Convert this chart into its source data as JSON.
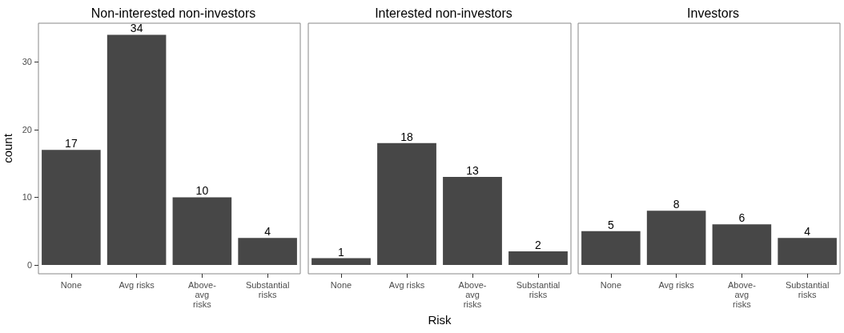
{
  "chart_data": [
    {
      "type": "bar",
      "title": "Non-interested non-investors",
      "ylabel": "count",
      "categories": [
        "None",
        "Avg risks",
        "Above-\navg\nrisks",
        "Substantial\nrisks"
      ],
      "values": [
        17,
        34,
        10,
        4
      ],
      "color": "#474747",
      "ylim": [
        -1.3,
        35.7
      ],
      "yticks": [
        0,
        10,
        20,
        30
      ],
      "data_labels": true,
      "grid": false
    },
    {
      "type": "bar",
      "title": "Interested non-investors",
      "xlabel": "Risk",
      "categories": [
        "None",
        "Avg risks",
        "Above-\navg\nrisks",
        "Substantial\nrisks"
      ],
      "values": [
        1,
        18,
        13,
        2
      ],
      "color": "#474747",
      "ylim": [
        -1.3,
        35.7
      ],
      "yticks": [
        0,
        10,
        20,
        30
      ],
      "data_labels": true,
      "grid": false,
      "tick_labels": "x"
    },
    {
      "type": "bar",
      "title": "Investors",
      "categories": [
        "None",
        "Avg risks",
        "Above-\navg\nrisks",
        "Substantial\nrisks"
      ],
      "values": [
        5,
        8,
        6,
        4
      ],
      "color": "#474747",
      "ylim": [
        -1.3,
        35.7
      ],
      "yticks": [
        0,
        10,
        20,
        30
      ],
      "data_labels": true,
      "grid": false,
      "tick_labels": "x"
    }
  ]
}
